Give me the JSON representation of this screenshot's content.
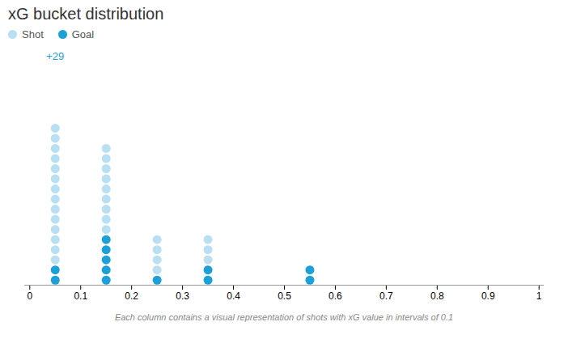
{
  "chart_data": {
    "type": "dot_stack",
    "title": "xG bucket distribution",
    "subtitle": "Each column contains a visual representation of shots with xG value in intervals of 0.1",
    "x": [
      0.05,
      0.15,
      0.25,
      0.35,
      0.55
    ],
    "series": [
      {
        "name": "Shot",
        "color": "#b8dff2",
        "values": [
          14,
          9,
          4,
          3,
          0
        ]
      },
      {
        "name": "Goal",
        "color": "#1ca0d8",
        "values": [
          2,
          5,
          1,
          2,
          2
        ]
      }
    ],
    "stacked": true,
    "annotations": [
      {
        "x": 0.05,
        "text": "+29",
        "color": "#1ca0d8"
      }
    ],
    "xlim": [
      -0.01,
      1.01
    ],
    "xticks": [
      0,
      0.1,
      0.2,
      0.3,
      0.4,
      0.5,
      0.6,
      0.7,
      0.8,
      0.9,
      1
    ],
    "ylim": [
      0,
      23
    ],
    "tick_labels": "x",
    "grid": false,
    "legend": "top left"
  }
}
